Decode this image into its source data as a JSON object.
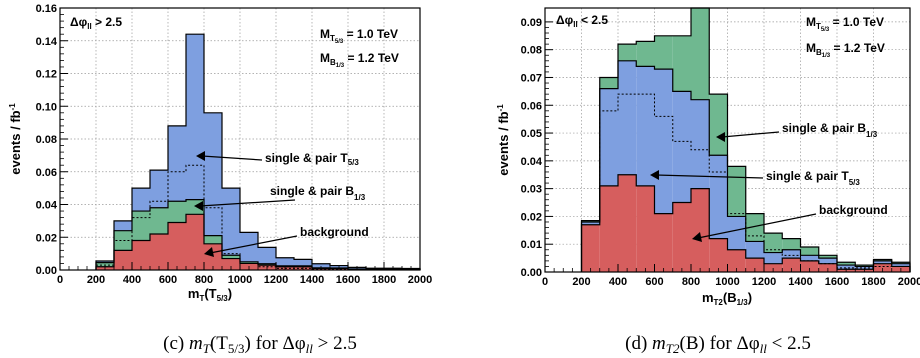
{
  "colors": {
    "background": "#d65e5e",
    "signal_T": "#7e9fe0",
    "signal_B": "#6fb890",
    "outline": "#000000",
    "grid": "#9a9a9a"
  },
  "chart_data": [
    {
      "type": "bar",
      "stacked_histogram": true,
      "bin_edges": [
        200,
        300,
        400,
        500,
        600,
        700,
        800,
        900,
        1000,
        1100,
        1200,
        1300,
        1400,
        1500,
        1600,
        1700,
        1800,
        1900,
        2000
      ],
      "xlim": [
        0,
        2000
      ],
      "ylim": [
        0,
        0.16
      ],
      "grid": true,
      "cut_label": "Δφ",
      "cut_sub": "ll",
      "cut_rest": " > 2.5",
      "mass1_main": "M",
      "mass1_sub": "T",
      "mass1_subsub": "5/3",
      "mass1_rest": " = 1.0 TeV",
      "mass2_main": "M",
      "mass2_sub": "B",
      "mass2_subsub": "1/3",
      "mass2_rest": " = 1.2 TeV",
      "xlabel_main": "m",
      "xlabel_sub": "T",
      "xlabel_paren": "(T",
      "xlabel_paren_sub": "5/3",
      "xlabel_end": ")",
      "ylabel_main": "events / fb",
      "ylabel_sup": "-1",
      "ytick_labels": [
        "0.00",
        "0.02",
        "0.04",
        "0.06",
        "0.08",
        "0.10",
        "0.12",
        "0.14",
        "0.16"
      ],
      "xtick_labels": [
        "0",
        "200",
        "400",
        "600",
        "800",
        "1000",
        "1200",
        "1400",
        "1600",
        "1800",
        "2000"
      ],
      "series": [
        {
          "name": "background",
          "values": [
            0.002,
            0.012,
            0.018,
            0.022,
            0.029,
            0.034,
            0.016,
            0.007,
            0.004,
            0.003,
            0.002,
            0.002,
            0.001,
            0.001,
            0.0005,
            0.0005,
            0.0005,
            0.0005
          ]
        },
        {
          "name": "single & pair B",
          "values": [
            0.0025,
            0.012,
            0.018,
            0.016,
            0.013,
            0.009,
            0.005,
            0.002,
            0.001,
            0.0008,
            0.0005,
            0.0005,
            0.0003,
            0.0002,
            0.0001,
            0.0001,
            0.0001,
            0.0001
          ]
        },
        {
          "name": "single & pair T",
          "values": [
            0.001,
            0.006,
            0.014,
            0.023,
            0.046,
            0.101,
            0.075,
            0.041,
            0.018,
            0.01,
            0.005,
            0.004,
            0.0025,
            0.0015,
            0.001,
            0.0005,
            0.0005,
            0.0003
          ]
        }
      ],
      "dashed_overlay": [
        0.003,
        0.018,
        0.032,
        0.042,
        0.06,
        0.064,
        0.038,
        0.01,
        0.004,
        0.002,
        0.001,
        0.001,
        0.0005,
        0.0004,
        0.0003,
        0.0002,
        0.0002,
        0.0001
      ],
      "annotations": [
        {
          "text": "single & pair T",
          "sub": "5/3"
        },
        {
          "text": "single & pair B",
          "sub": "1/3"
        },
        {
          "text": "background",
          "sub": ""
        }
      ],
      "caption": "(c) m<sub>T</sub>(T<sub>5/3</sub>) for Δφ<sub>ll</sub> > 2.5",
      "caption_text": "(c) ",
      "caption_math": "m",
      "caption_math_sub": "T",
      "caption_paren": "(T",
      "caption_paren_sub": "5/3",
      "caption_tail": ") for Δφ",
      "caption_tail_sub": "ll",
      "caption_end": " > 2.5"
    },
    {
      "type": "bar",
      "stacked_histogram": true,
      "bin_edges": [
        200,
        300,
        400,
        500,
        600,
        700,
        800,
        900,
        1000,
        1100,
        1200,
        1300,
        1400,
        1500,
        1600,
        1700,
        1800,
        1900,
        2000
      ],
      "xlim": [
        0,
        2000
      ],
      "ylim": [
        0,
        0.095
      ],
      "grid": true,
      "cut_label": "Δφ",
      "cut_sub": "ll",
      "cut_rest": " < 2.5",
      "mass1_main": "M",
      "mass1_sub": "T",
      "mass1_subsub": "5/3",
      "mass1_rest": " = 1.0 TeV",
      "mass2_main": "M",
      "mass2_sub": "B",
      "mass2_subsub": "1/3",
      "mass2_rest": " = 1.2 TeV",
      "xlabel_main": "m",
      "xlabel_sub": "T2",
      "xlabel_paren": "(B",
      "xlabel_paren_sub": "1/3",
      "xlabel_end": ")",
      "ylabel_main": "events / fb",
      "ylabel_sup": "-1",
      "ytick_labels": [
        "0.00",
        "0.01",
        "0.02",
        "0.03",
        "0.04",
        "0.05",
        "0.06",
        "0.07",
        "0.08",
        "0.09"
      ],
      "xtick_labels": [
        "0",
        "200",
        "400",
        "600",
        "800",
        "1000",
        "1200",
        "1400",
        "1600",
        "1800",
        "2000"
      ],
      "series": [
        {
          "name": "background",
          "values": [
            0.017,
            0.031,
            0.035,
            0.031,
            0.021,
            0.025,
            0.03,
            0.012,
            0.008,
            0.005,
            0.003,
            0.005,
            0.004,
            0.003,
            0.001,
            0.001,
            0.003,
            0.002
          ]
        },
        {
          "name": "single & pair T",
          "values": [
            0.001,
            0.035,
            0.041,
            0.043,
            0.052,
            0.04,
            0.032,
            0.03,
            0.012,
            0.006,
            0.004,
            0.003,
            0.002,
            0.002,
            0.0015,
            0.001,
            0.001,
            0.001
          ]
        },
        {
          "name": "single & pair B",
          "values": [
            0.0005,
            0.004,
            0.006,
            0.009,
            0.012,
            0.02,
            0.033,
            0.022,
            0.018,
            0.01,
            0.007,
            0.004,
            0.003,
            0.001,
            0.001,
            0.0005,
            0.0005,
            0.0005
          ]
        }
      ],
      "dashed_overlay": [
        0.018,
        0.058,
        0.064,
        0.064,
        0.056,
        0.047,
        0.044,
        0.036,
        0.021,
        0.013,
        0.008,
        0.006,
        0.004,
        0.003,
        0.0015,
        0.0015,
        0.002,
        0.002
      ],
      "annotations": [
        {
          "text": "single & pair B",
          "sub": "1/3"
        },
        {
          "text": "single & pair T",
          "sub": "5/3"
        },
        {
          "text": "background",
          "sub": ""
        }
      ],
      "caption_text": "(d) ",
      "caption_math": "m",
      "caption_math_sub": "T2",
      "caption_paren": "(B",
      "caption_paren_sub": "",
      "caption_tail": ") for Δφ",
      "caption_tail_sub": "ll",
      "caption_end": " < 2.5"
    }
  ]
}
